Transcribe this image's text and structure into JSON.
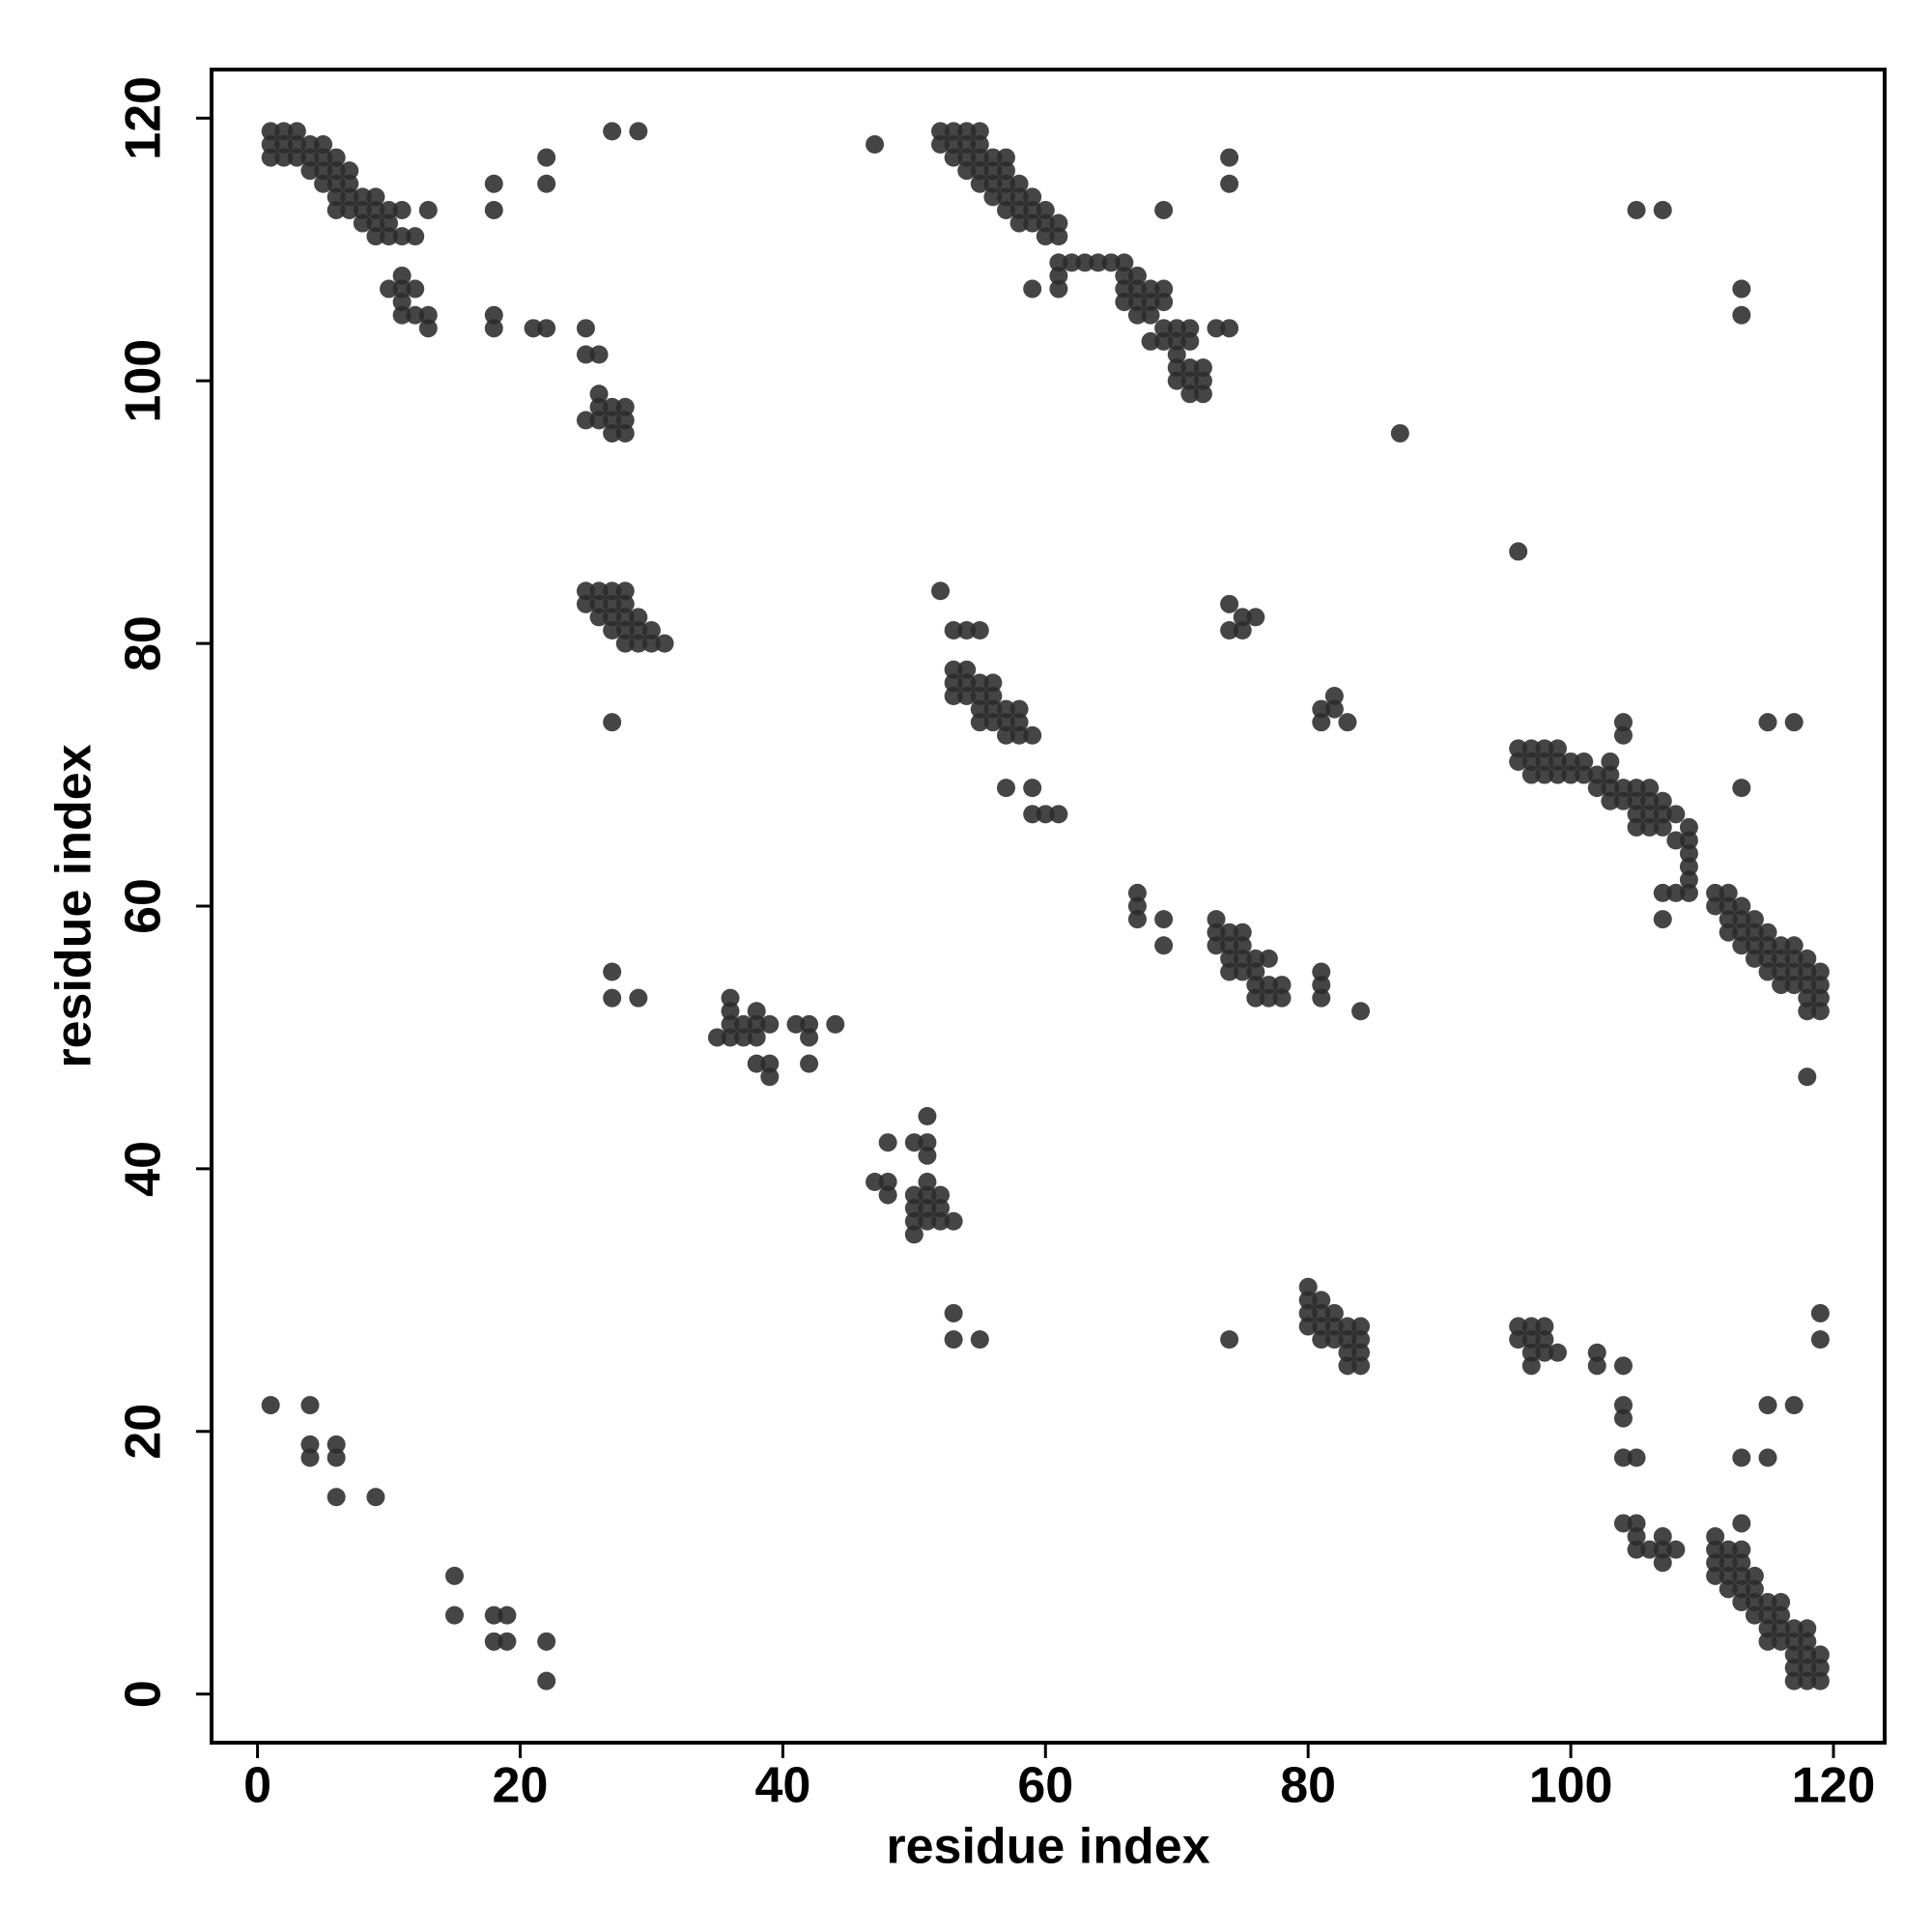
{
  "chart_data": {
    "type": "scatter",
    "xlabel": "residue index",
    "ylabel": "residue index",
    "xlim": [
      -3.5,
      123.9
    ],
    "ylim": [
      -3.7,
      123.7
    ],
    "xticks": [
      0,
      20,
      40,
      60,
      80,
      100,
      120
    ],
    "yticks": [
      0,
      20,
      40,
      60,
      80,
      100,
      120
    ],
    "series": [
      {
        "color": "#2b2b2b",
        "x": [
          1,
          1,
          1,
          2,
          2,
          2,
          3,
          3,
          3,
          4,
          4,
          4,
          5,
          5,
          5,
          5,
          6,
          6,
          6,
          6,
          6,
          7,
          7,
          7,
          7,
          8,
          8,
          8,
          9,
          9,
          9,
          9,
          10,
          10,
          10,
          11,
          11,
          11,
          11,
          11,
          11,
          12,
          12,
          12,
          10,
          13,
          13,
          13,
          18,
          18,
          18,
          18,
          21,
          22,
          22,
          22,
          25,
          25,
          26,
          25,
          26,
          26,
          26,
          27,
          27,
          27,
          28,
          28,
          28,
          27,
          29,
          47,
          25,
          25,
          26,
          26,
          26,
          27,
          27,
          27,
          27,
          28,
          28,
          28,
          28,
          28,
          29,
          29,
          29,
          30,
          30,
          31,
          27,
          27,
          27,
          29,
          35,
          36,
          36,
          36,
          36,
          37,
          37,
          38,
          38,
          38,
          38,
          39,
          39,
          39,
          41,
          42,
          42,
          42,
          44,
          47,
          48,
          48,
          48,
          50,
          50,
          50,
          50,
          50,
          51,
          51,
          51,
          51,
          51,
          51,
          51,
          52,
          52,
          52,
          53,
          53,
          53,
          55,
          52,
          52,
          53,
          53,
          53,
          54,
          54,
          54,
          54,
          55,
          55,
          55,
          55,
          55,
          56,
          56,
          56,
          56,
          57,
          57,
          57,
          57,
          57,
          58,
          58,
          58,
          58,
          59,
          59,
          59,
          59,
          60,
          60,
          60,
          61,
          61,
          61,
          61,
          61,
          62,
          63,
          64,
          65,
          66,
          66,
          66,
          66,
          67,
          67,
          67,
          67,
          68,
          68,
          68,
          68,
          69,
          69,
          69,
          69,
          70,
          70,
          70,
          70,
          70,
          71,
          71,
          71,
          71,
          71,
          72,
          72,
          72,
          69,
          73,
          74,
          74,
          74,
          87,
          96,
          105,
          107,
          113,
          113,
          52,
          53,
          54,
          55,
          53,
          53,
          53,
          54,
          54,
          54,
          55,
          55,
          55,
          55,
          56,
          56,
          56,
          56,
          57,
          57,
          57,
          58,
          58,
          58,
          59,
          57,
          59,
          59,
          60,
          61,
          74,
          74,
          75,
          75,
          76,
          81,
          81,
          82,
          82,
          83,
          67,
          67,
          67,
          69,
          69,
          73,
          73,
          73,
          74,
          74,
          74,
          74,
          75,
          75,
          75,
          75,
          76,
          76,
          76,
          76,
          77,
          77,
          77,
          78,
          78,
          81,
          81,
          81,
          84,
          96,
          96,
          97,
          97,
          97,
          98,
          98,
          98,
          99,
          99,
          99,
          100,
          100,
          101,
          101,
          102,
          102,
          103,
          103,
          103,
          103,
          104,
          104,
          104,
          104,
          105,
          105,
          105,
          105,
          106,
          106,
          106,
          106,
          107,
          107,
          107,
          107,
          107,
          108,
          108,
          108,
          109,
          109,
          109,
          109,
          109,
          109,
          113,
          111,
          111,
          112,
          112,
          112,
          112,
          113,
          113,
          113,
          113,
          114,
          114,
          114,
          114,
          115,
          115,
          115,
          115,
          116,
          116,
          116,
          116,
          117,
          117,
          117,
          117,
          118,
          118,
          118,
          118,
          118,
          119,
          119,
          119,
          119,
          118,
          115,
          117,
          80,
          80,
          80,
          80,
          81,
          81,
          81,
          81,
          82,
          82,
          82,
          83,
          83,
          83,
          83,
          84,
          84,
          84,
          84,
          74,
          96,
          96,
          97,
          97,
          97,
          98,
          98,
          98,
          97,
          99,
          102,
          102,
          104,
          104,
          104,
          104,
          105,
          104,
          105,
          105,
          105,
          106,
          107,
          107,
          107,
          108,
          113,
          115,
          115,
          117,
          119,
          119,
          111,
          111,
          111,
          111,
          112,
          112,
          112,
          112,
          113,
          113,
          113,
          113,
          113,
          113,
          114,
          114,
          114,
          114,
          115,
          115,
          115,
          115,
          116,
          116,
          116,
          116,
          117,
          117,
          117,
          117,
          117,
          118,
          118,
          118,
          118,
          118,
          119,
          119,
          119,
          1,
          4,
          4,
          4,
          6,
          6,
          6,
          9,
          15,
          15,
          18,
          19,
          18,
          19,
          22,
          22
        ],
        "values": [
          119,
          118,
          117,
          119,
          118,
          117,
          119,
          118,
          117,
          118,
          117,
          116,
          118,
          117,
          116,
          115,
          117,
          116,
          115,
          114,
          113,
          116,
          115,
          114,
          113,
          114,
          113,
          112,
          114,
          113,
          112,
          111,
          113,
          112,
          111,
          113,
          111,
          108,
          107,
          106,
          105,
          111,
          107,
          105,
          107,
          113,
          105,
          104,
          115,
          113,
          105,
          104,
          104,
          104,
          117,
          115,
          104,
          102,
          102,
          97,
          99,
          98,
          97,
          98,
          97,
          96,
          98,
          97,
          96,
          119,
          119,
          118,
          84,
          83,
          84,
          83,
          82,
          84,
          83,
          82,
          81,
          84,
          83,
          82,
          81,
          80,
          82,
          81,
          80,
          81,
          80,
          80,
          74,
          55,
          53,
          53,
          50,
          53,
          52,
          51,
          50,
          51,
          50,
          52,
          51,
          50,
          48,
          51,
          48,
          47,
          51,
          51,
          50,
          48,
          51,
          39,
          42,
          39,
          38,
          42,
          38,
          37,
          36,
          35,
          44,
          42,
          41,
          39,
          38,
          37,
          36,
          38,
          37,
          36,
          36,
          29,
          27,
          27,
          119,
          118,
          119,
          118,
          117,
          119,
          118,
          117,
          116,
          119,
          118,
          117,
          116,
          115,
          117,
          116,
          115,
          114,
          117,
          116,
          115,
          114,
          113,
          115,
          114,
          113,
          112,
          114,
          113,
          112,
          107,
          113,
          112,
          111,
          112,
          111,
          109,
          108,
          107,
          109,
          109,
          109,
          109,
          109,
          108,
          107,
          106,
          108,
          107,
          106,
          105,
          107,
          106,
          105,
          103,
          107,
          106,
          104,
          103,
          104,
          103,
          102,
          101,
          100,
          104,
          103,
          101,
          100,
          99,
          101,
          100,
          99,
          113,
          104,
          104,
          117,
          115,
          96,
          87,
          113,
          113,
          107,
          105,
          84,
          81,
          81,
          81,
          78,
          77,
          76,
          78,
          77,
          76,
          77,
          76,
          75,
          74,
          77,
          76,
          75,
          74,
          75,
          74,
          73,
          75,
          74,
          73,
          73,
          69,
          69,
          67,
          67,
          67,
          83,
          81,
          82,
          81,
          82,
          75,
          74,
          76,
          75,
          74,
          61,
          60,
          59,
          59,
          57,
          59,
          58,
          57,
          58,
          57,
          56,
          55,
          58,
          57,
          56,
          55,
          56,
          55,
          54,
          53,
          56,
          54,
          53,
          54,
          53,
          55,
          54,
          53,
          52,
          72,
          71,
          72,
          71,
          70,
          72,
          71,
          70,
          72,
          71,
          70,
          71,
          70,
          71,
          70,
          70,
          69,
          71,
          70,
          69,
          68,
          74,
          73,
          69,
          68,
          69,
          68,
          67,
          66,
          69,
          68,
          67,
          66,
          68,
          67,
          66,
          61,
          59,
          67,
          65,
          61,
          66,
          65,
          64,
          63,
          62,
          61,
          69,
          61,
          60,
          61,
          60,
          59,
          58,
          60,
          59,
          58,
          57,
          59,
          58,
          57,
          56,
          58,
          57,
          56,
          55,
          57,
          56,
          55,
          54,
          57,
          56,
          55,
          54,
          56,
          55,
          54,
          53,
          52,
          55,
          54,
          53,
          52,
          47,
          74,
          74,
          31,
          30,
          29,
          28,
          30,
          29,
          28,
          27,
          29,
          28,
          27,
          28,
          27,
          26,
          25,
          28,
          27,
          26,
          25,
          27,
          28,
          27,
          28,
          27,
          26,
          28,
          27,
          26,
          25,
          26,
          26,
          25,
          25,
          22,
          21,
          18,
          18,
          13,
          13,
          12,
          11,
          11,
          12,
          11,
          10,
          11,
          18,
          22,
          18,
          22,
          29,
          27,
          12,
          11,
          10,
          9,
          11,
          10,
          9,
          8,
          13,
          11,
          10,
          9,
          8,
          7,
          9,
          8,
          7,
          6,
          7,
          6,
          5,
          4,
          7,
          6,
          5,
          4,
          5,
          4,
          3,
          2,
          1,
          5,
          4,
          3,
          2,
          1,
          3,
          2,
          1,
          22,
          22,
          19,
          18,
          19,
          18,
          15,
          15,
          9,
          6,
          6,
          6,
          4,
          4,
          4,
          1
        ]
      }
    ]
  }
}
